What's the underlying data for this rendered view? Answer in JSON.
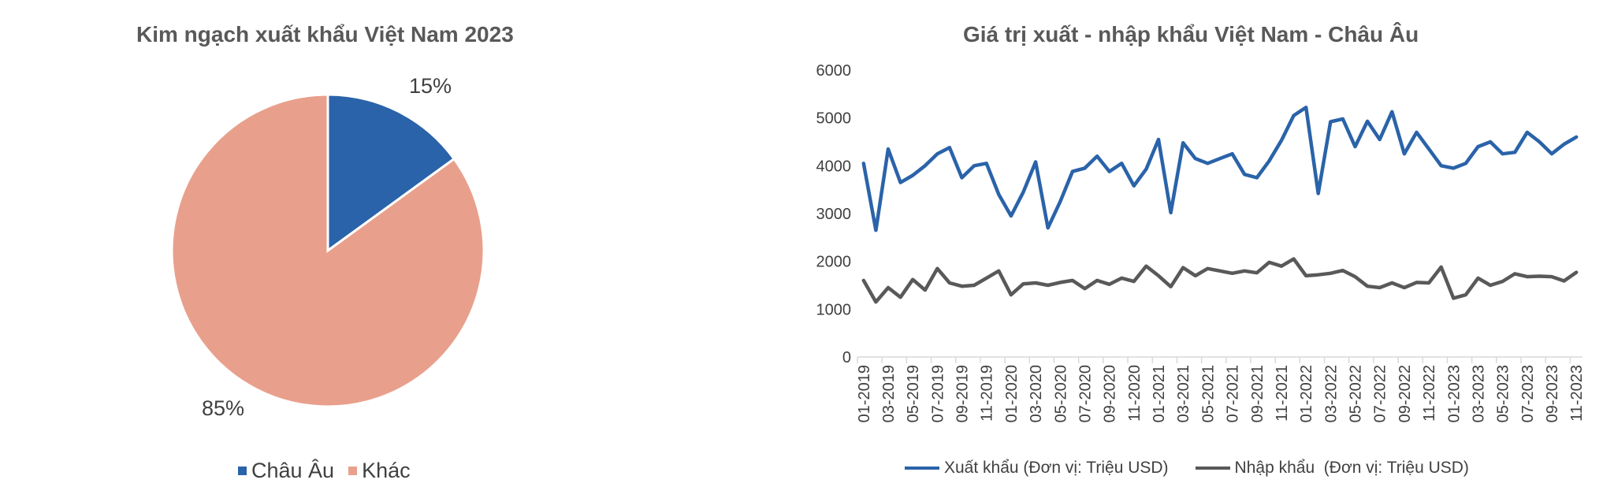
{
  "chart_data": [
    {
      "type": "pie",
      "title": "Kim ngạch xuất khẩu Việt Nam 2023",
      "categories": [
        "Châu Âu",
        "Khác"
      ],
      "values": [
        15,
        85
      ],
      "data_labels": [
        "15%",
        "85%"
      ],
      "colors": [
        "#2A63A9",
        "#E8A08C"
      ],
      "legend_position": "bottom"
    },
    {
      "type": "line",
      "title": "Giá trị xuất - nhập khẩu Việt Nam - Châu Âu",
      "ylim": [
        0,
        6000
      ],
      "yticks": [
        "0",
        "1000",
        "2000",
        "3000",
        "4000",
        "5000",
        "6000"
      ],
      "grid": false,
      "legend_position": "bottom",
      "x": [
        "01-2019",
        "02-2019",
        "03-2019",
        "04-2019",
        "05-2019",
        "06-2019",
        "07-2019",
        "08-2019",
        "09-2019",
        "10-2019",
        "11-2019",
        "12-2019",
        "01-2020",
        "02-2020",
        "03-2020",
        "04-2020",
        "05-2020",
        "06-2020",
        "07-2020",
        "08-2020",
        "09-2020",
        "10-2020",
        "11-2020",
        "12-2020",
        "01-2021",
        "02-2021",
        "03-2021",
        "04-2021",
        "05-2021",
        "06-2021",
        "07-2021",
        "08-2021",
        "09-2021",
        "10-2021",
        "11-2021",
        "12-2021",
        "01-2022",
        "02-2022",
        "03-2022",
        "04-2022",
        "05-2022",
        "06-2022",
        "07-2022",
        "08-2022",
        "09-2022",
        "10-2022",
        "11-2022",
        "12-2022",
        "01-2023",
        "02-2023",
        "03-2023",
        "04-2023",
        "05-2023",
        "06-2023",
        "07-2023",
        "08-2023",
        "09-2023",
        "10-2023",
        "11-2023"
      ],
      "xtick_labels": [
        "01-2019",
        "03-2019",
        "05-2019",
        "07-2019",
        "09-2019",
        "11-2019",
        "01-2020",
        "03-2020",
        "05-2020",
        "07-2020",
        "09-2020",
        "11-2020",
        "01-2021",
        "03-2021",
        "05-2021",
        "07-2021",
        "09-2021",
        "11-2021",
        "01-2022",
        "03-2022",
        "05-2022",
        "07-2022",
        "09-2022",
        "11-2022",
        "01-2023",
        "03-2023",
        "05-2023",
        "07-2023",
        "09-2023",
        "11-2023"
      ],
      "series": [
        {
          "name": "Xuất khẩu (Đơn vị: Triệu USD)",
          "color": "#2A63A9",
          "values": [
            4050,
            2650,
            4350,
            3650,
            3800,
            4000,
            4250,
            4380,
            3750,
            4000,
            4050,
            3400,
            2950,
            3450,
            4080,
            2700,
            3250,
            3880,
            3950,
            4200,
            3880,
            4050,
            3580,
            3930,
            4550,
            3020,
            4480,
            4150,
            4050,
            4150,
            4250,
            3820,
            3750,
            4100,
            4530,
            5050,
            5220,
            3420,
            4920,
            4980,
            4400,
            4930,
            4550,
            5130,
            4250,
            4700,
            4350,
            4000,
            3950,
            4050,
            4400,
            4500,
            4250,
            4280,
            4700,
            4500,
            4250,
            4450,
            4600
          ]
        },
        {
          "name": "Nhập khẩu  (Đơn vị: Triệu USD)",
          "color": "#595959",
          "values": [
            1600,
            1150,
            1450,
            1250,
            1620,
            1400,
            1850,
            1550,
            1480,
            1500,
            1650,
            1800,
            1300,
            1530,
            1550,
            1500,
            1560,
            1600,
            1430,
            1600,
            1520,
            1650,
            1580,
            1900,
            1700,
            1470,
            1870,
            1700,
            1850,
            1800,
            1750,
            1800,
            1760,
            1980,
            1900,
            2050,
            1700,
            1720,
            1750,
            1810,
            1680,
            1480,
            1450,
            1550,
            1450,
            1560,
            1550,
            1880,
            1230,
            1300,
            1650,
            1500,
            1580,
            1740,
            1680,
            1690,
            1680,
            1590,
            1770
          ]
        }
      ]
    }
  ]
}
